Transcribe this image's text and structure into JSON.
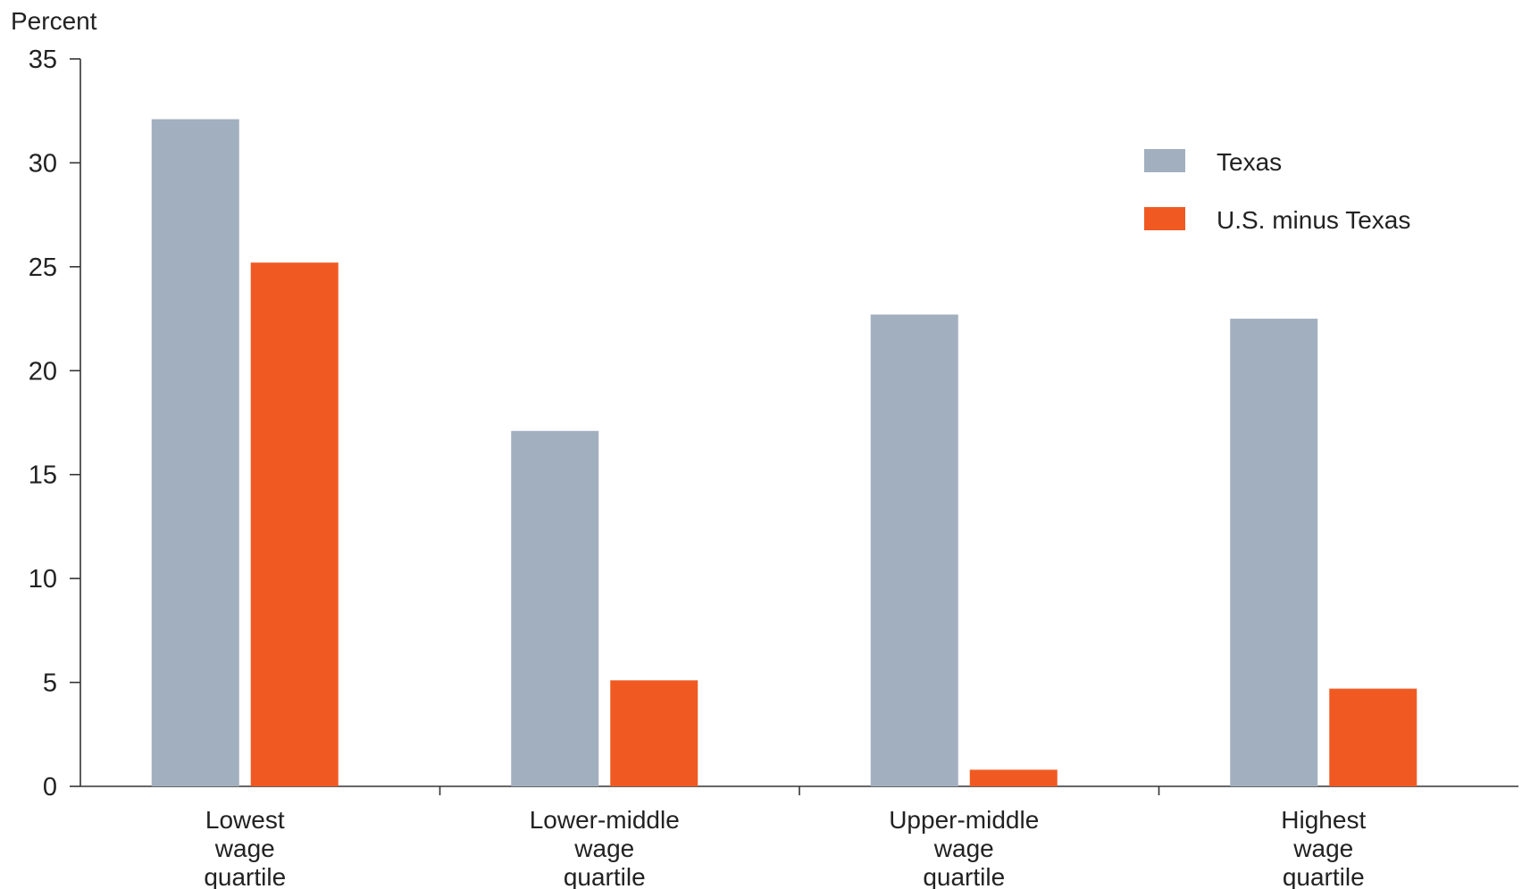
{
  "chart_data": {
    "type": "bar",
    "title": "",
    "xlabel": "",
    "ylabel": "Percent",
    "ylim": [
      0,
      35
    ],
    "yticks": [
      0,
      5,
      10,
      15,
      20,
      25,
      30,
      35
    ],
    "categories": [
      [
        "Lowest",
        "wage",
        "quartile"
      ],
      [
        "Lower-middle",
        "wage",
        "quartile"
      ],
      [
        "Upper-middle",
        "wage",
        "quartile"
      ],
      [
        "Highest",
        "wage",
        "quartile"
      ]
    ],
    "series": [
      {
        "name": "Texas",
        "color": "#a2afbf",
        "values": [
          32.1,
          17.1,
          22.7,
          22.5
        ]
      },
      {
        "name": "U.S. minus Texas",
        "color": "#f05a22",
        "values": [
          25.2,
          5.1,
          0.8,
          4.7
        ]
      }
    ],
    "grid": false,
    "legend_position": "top-right"
  }
}
